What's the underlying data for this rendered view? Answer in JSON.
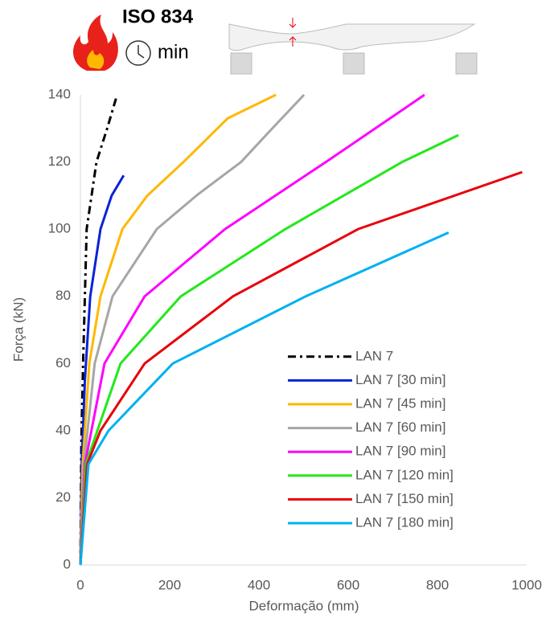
{
  "header": {
    "title": "ISO 834",
    "unit": "min"
  },
  "chart_data": {
    "type": "line",
    "xlabel": "Deformação (mm)",
    "ylabel": "Força (kN)",
    "xlim": [
      0,
      1000
    ],
    "ylim": [
      0,
      140
    ],
    "xticks": [
      0,
      200,
      400,
      600,
      800,
      1000
    ],
    "yticks": [
      0,
      20,
      40,
      60,
      80,
      100,
      120,
      140
    ],
    "grid": false,
    "legend": "lower right",
    "series": [
      {
        "name": "LAN 7",
        "color": "#000000",
        "dash": "dashdot",
        "x": [
          0,
          2,
          6,
          14,
          36,
          60,
          80
        ],
        "values": [
          0,
          35,
          60,
          100,
          120,
          130,
          139
        ]
      },
      {
        "name": "LAN 7 [30 min]",
        "color": "#0a22d8",
        "x": [
          0,
          3,
          10,
          22,
          45,
          70,
          97
        ],
        "values": [
          0,
          30,
          55,
          80,
          100,
          110,
          116
        ]
      },
      {
        "name": "LAN 7 [45 min]",
        "color": "#ffb800",
        "x": [
          0,
          5,
          20,
          45,
          94,
          150,
          231,
          330,
          438
        ],
        "values": [
          0,
          30,
          60,
          80,
          100,
          110,
          120,
          133,
          140
        ]
      },
      {
        "name": "LAN 7 [60 min]",
        "color": "#a6a6a6",
        "x": [
          0,
          8,
          32,
          72,
          171,
          260,
          360,
          430,
          501
        ],
        "values": [
          0,
          30,
          60,
          80,
          100,
          110,
          120,
          130,
          140
        ]
      },
      {
        "name": "LAN 7 [90 min]",
        "color": "#ff00ff",
        "x": [
          0,
          10,
          54,
          144,
          324,
          550,
          771
        ],
        "values": [
          0,
          30,
          60,
          80,
          100,
          120,
          140
        ]
      },
      {
        "name": "LAN 7 [120 min]",
        "color": "#22e81a",
        "x": [
          0,
          12,
          90,
          225,
          459,
          721,
          847
        ],
        "values": [
          0,
          30,
          60,
          80,
          100,
          120,
          128
        ]
      },
      {
        "name": "LAN 7 [150 min]",
        "color": "#e8000b",
        "x": [
          0,
          15,
          45,
          144,
          342,
          622,
          990
        ],
        "values": [
          0,
          30,
          40,
          60,
          80,
          100,
          117
        ]
      },
      {
        "name": "LAN 7 [180 min]",
        "color": "#00b0f0",
        "x": [
          0,
          18,
          63,
          207,
          505,
          825
        ],
        "values": [
          0,
          30,
          40,
          60,
          80,
          99
        ]
      }
    ]
  }
}
